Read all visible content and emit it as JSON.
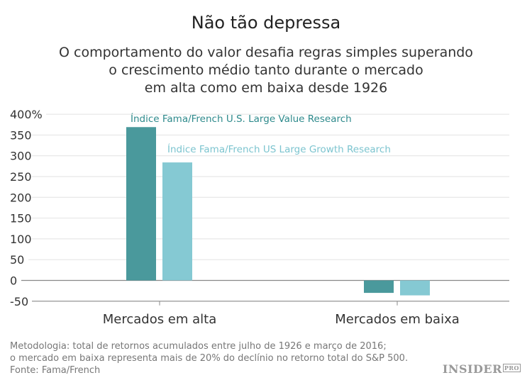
{
  "chart_data": {
    "type": "bar",
    "title": "Não tão depressa",
    "subtitle": [
      "O comportamento do valor desafia regras simples superando",
      "o crescimento médio tanto durante o mercado",
      "em alta como em baixa desde 1926"
    ],
    "categories": [
      "Mercados em alta",
      "Mercados em baixa"
    ],
    "series": [
      {
        "name": "Índice Fama/French U.S. Large Value Research",
        "values": [
          369,
          -30
        ],
        "color": "#4a999c"
      },
      {
        "name": "Índice Fama/French US Large Growth Research",
        "values": [
          284,
          -36
        ],
        "color": "#85c9d3"
      }
    ],
    "ylim": [
      -50,
      400
    ],
    "yticks": [
      -50,
      0,
      50,
      100,
      150,
      200,
      250,
      300,
      350,
      400
    ],
    "ytick_labels": [
      "-50",
      "0",
      "50",
      "100",
      "150",
      "200",
      "250",
      "300",
      "350",
      "400%"
    ],
    "grid": true,
    "legend": "inline labels above bars"
  },
  "footer": {
    "lines": [
      "Metodologia: total de retornos acumulados entre julho de 1926 e março de 2016;",
      "o mercado em baixa representa mais de 20% do declínio no retorno total do S&P 500.",
      "Fonte: Fama/French"
    ],
    "logo": "INSIDER PRO"
  }
}
